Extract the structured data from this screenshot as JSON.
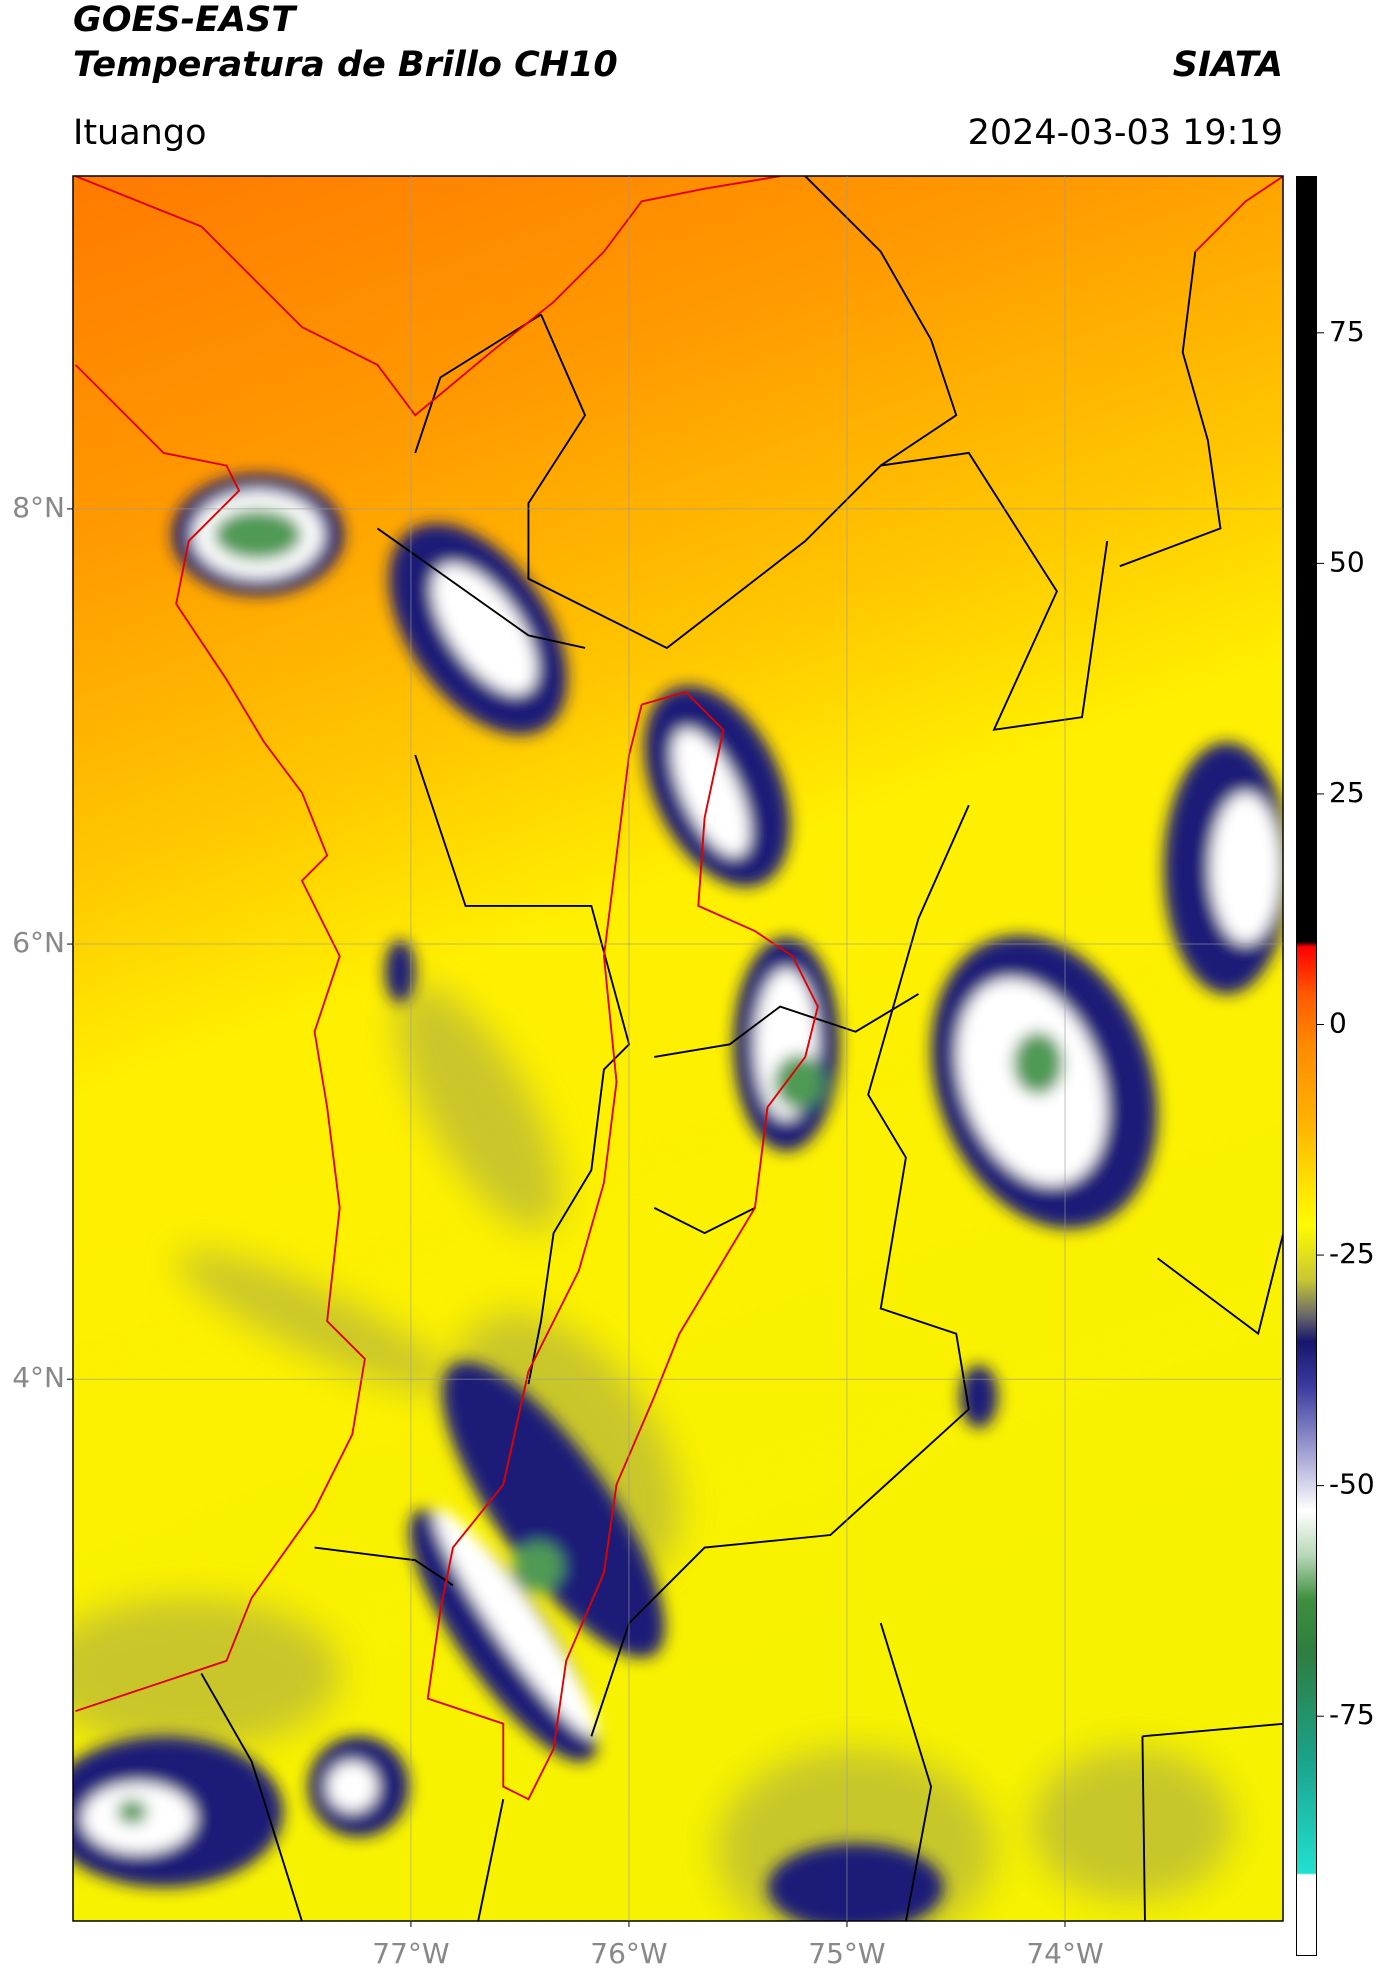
{
  "header": {
    "title": "GOES-EAST",
    "subtitle": "Temperatura de Brillo CH10",
    "brand": "SIATA",
    "location": "Ituango",
    "datetime": "2024-03-03 19:19"
  },
  "map": {
    "xlim": [
      -78.55,
      -73.0
    ],
    "ylim": [
      1.51,
      9.53
    ],
    "xticks": [
      {
        "value": -77,
        "label": "77°W"
      },
      {
        "value": -76,
        "label": "76°W"
      },
      {
        "value": -75,
        "label": "75°W"
      },
      {
        "value": -74,
        "label": "74°W"
      }
    ],
    "yticks": [
      {
        "value": 8,
        "label": "8°N"
      },
      {
        "value": 6,
        "label": "6°N"
      },
      {
        "value": 4,
        "label": "4°N"
      }
    ],
    "grid": true
  },
  "colorbar": {
    "lim": [
      -101,
      92
    ],
    "ticks": [
      75,
      50,
      25,
      0,
      -25,
      -50,
      -75
    ]
  }
}
